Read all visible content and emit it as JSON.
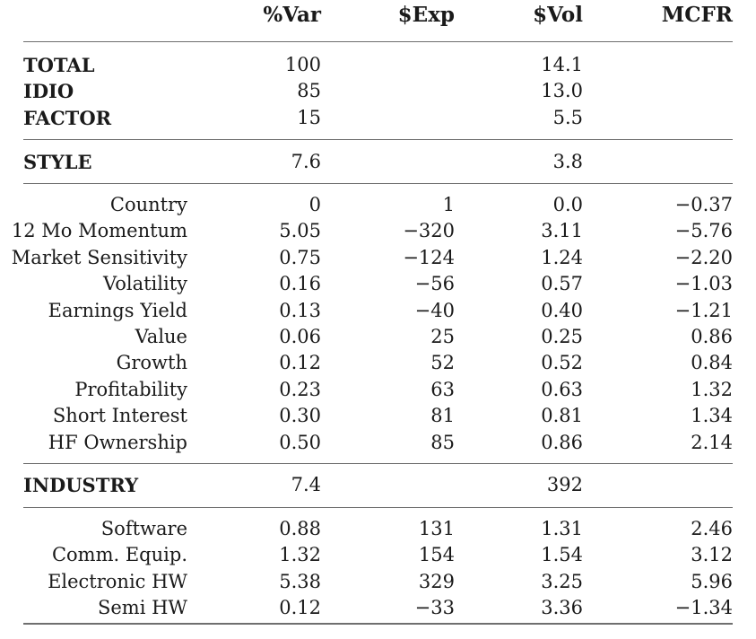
{
  "header": [
    "%Var",
    "$Exp",
    "$Vol",
    "MCFR"
  ],
  "summary": [
    {
      "label": "TOTAL",
      "var": "100",
      "exp": "",
      "vol": "14.1",
      "mcfr": ""
    },
    {
      "label": "IDIO",
      "var": "85",
      "exp": "",
      "vol": "13.0",
      "mcfr": ""
    },
    {
      "label": "FACTOR",
      "var": "15",
      "exp": "",
      "vol": "5.5",
      "mcfr": ""
    }
  ],
  "style": {
    "label": "STYLE",
    "var": "7.6",
    "exp": "",
    "vol": "3.8",
    "mcfr": ""
  },
  "style_rows": [
    {
      "label": "Country",
      "var": "0",
      "exp": "1",
      "vol": "0.0",
      "mcfr": "−0.37"
    },
    {
      "label": "12 Mo Momentum",
      "var": "5.05",
      "exp": "−320",
      "vol": "3.11",
      "mcfr": "−5.76"
    },
    {
      "label": "Market Sensitivity",
      "var": "0.75",
      "exp": "−124",
      "vol": "1.24",
      "mcfr": "−2.20"
    },
    {
      "label": "Volatility",
      "var": "0.16",
      "exp": "−56",
      "vol": "0.57",
      "mcfr": "−1.03"
    },
    {
      "label": "Earnings Yield",
      "var": "0.13",
      "exp": "−40",
      "vol": "0.40",
      "mcfr": "−1.21"
    },
    {
      "label": "Value",
      "var": "0.06",
      "exp": "25",
      "vol": "0.25",
      "mcfr": "0.86"
    },
    {
      "label": "Growth",
      "var": "0.12",
      "exp": "52",
      "vol": "0.52",
      "mcfr": "0.84"
    },
    {
      "label": "Profitability",
      "var": "0.23",
      "exp": "63",
      "vol": "0.63",
      "mcfr": "1.32"
    },
    {
      "label": "Short Interest",
      "var": "0.30",
      "exp": "81",
      "vol": "0.81",
      "mcfr": "1.34"
    },
    {
      "label": "HF Ownership",
      "var": "0.50",
      "exp": "85",
      "vol": "0.86",
      "mcfr": "2.14"
    }
  ],
  "industry": {
    "label": "INDUSTRY",
    "var": "7.4",
    "exp": "",
    "vol": "392",
    "mcfr": ""
  },
  "industry_rows": [
    {
      "label": "Software",
      "var": "0.88",
      "exp": "131",
      "vol": "1.31",
      "mcfr": "2.46"
    },
    {
      "label": "Comm. Equip.",
      "var": "1.32",
      "exp": "154",
      "vol": "1.54",
      "mcfr": "3.12"
    },
    {
      "label": "Electronic HW",
      "var": "5.38",
      "exp": "329",
      "vol": "3.25",
      "mcfr": "5.96"
    },
    {
      "label": "Semi HW",
      "var": "0.12",
      "exp": "−33",
      "vol": "3.36",
      "mcfr": "−1.34"
    }
  ]
}
